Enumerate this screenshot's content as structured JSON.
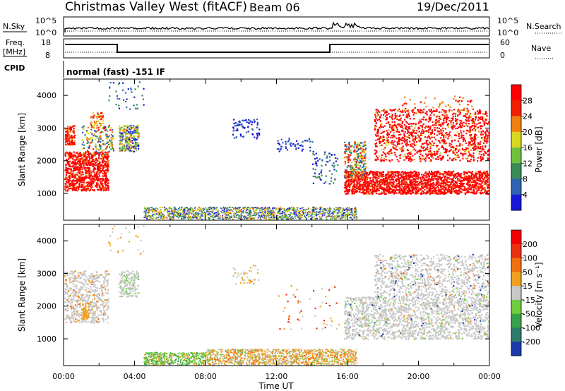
{
  "header": {
    "title": "Christmas Valley West (fitACF)",
    "beam": "Beam 06",
    "date": "19/Dec/2011"
  },
  "top_panels": {
    "nsky_label": "N.Sky",
    "nsearch_label": "N.Search",
    "nsky_ticks": [
      "10^5",
      "10^0"
    ],
    "freq_label_1": "Freq.",
    "freq_label_2": "[MHz]",
    "freq_ticks": [
      "18",
      "8"
    ],
    "nave_label": "Nave",
    "nave_ticks": [
      "60",
      "0"
    ],
    "cpid_label": "CPID",
    "cpid_text": "normal (fast) -151 IF"
  },
  "time_axis": {
    "label": "Time UT",
    "ticks": [
      "00:00",
      "04:00",
      "08:00",
      "12:00",
      "16:00",
      "20:00",
      "00:00"
    ]
  },
  "chart_data": [
    {
      "type": "heatmap",
      "name": "power",
      "xlabel": "Time UT",
      "ylabel": "Slant Range [km]",
      "xlim": [
        0,
        24
      ],
      "ylim": [
        180,
        4500
      ],
      "yticks": [
        "1000",
        "2000",
        "3000",
        "4000"
      ],
      "colorbar_label": "Power [dB]",
      "colorbar_ticks": [
        "4",
        "8",
        "12",
        "16",
        "20",
        "24",
        "28"
      ],
      "colorbar_colors": [
        "#1818d8",
        "#2f62b0",
        "#3a8a58",
        "#70c040",
        "#d8d820",
        "#f08010",
        "#f02000",
        "#ff0000"
      ]
    },
    {
      "type": "heatmap",
      "name": "velocity",
      "xlabel": "Time UT",
      "ylabel": "Slant Range [km]",
      "xlim": [
        0,
        24
      ],
      "ylim": [
        180,
        4500
      ],
      "yticks": [
        "1000",
        "2000",
        "3000",
        "4000"
      ],
      "colorbar_label": "Velocity [m s⁻¹]",
      "colorbar_ticks": [
        "200",
        "100",
        "50",
        "15",
        "-15",
        "-50",
        "-100",
        "-200"
      ],
      "colorbar_colors": [
        "#1a3aa8",
        "#2f7a6a",
        "#38a048",
        "#70cc40",
        "#c8c8c8",
        "#f0a020",
        "#f07010",
        "#e83010",
        "#ee0000"
      ]
    }
  ]
}
